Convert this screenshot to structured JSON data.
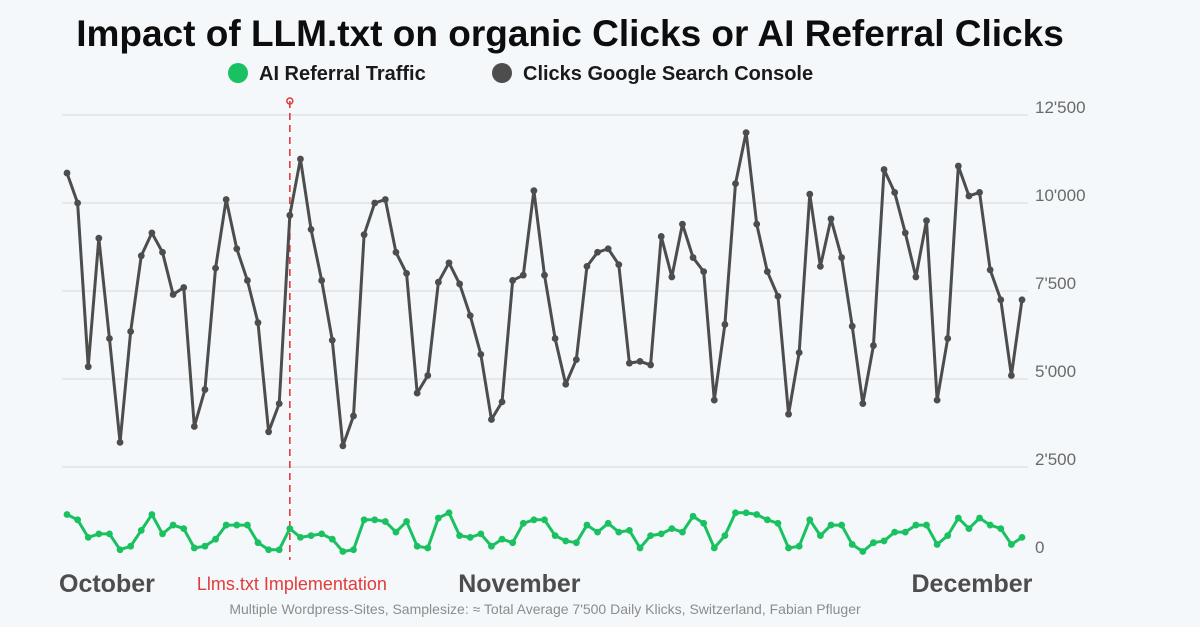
{
  "chart_data": {
    "type": "line",
    "title": "Impact of LLM.txt on organic Clicks or AI Referral Clicks",
    "ylim": [
      0,
      12500
    ],
    "yticks": [
      0,
      2500,
      5000,
      7500,
      10000,
      12500
    ],
    "ytick_labels": [
      "0",
      "2'500",
      "5'000",
      "7'500",
      "10'000",
      "12'500"
    ],
    "grid": true,
    "legend_position": "top-center",
    "x_month_labels": [
      {
        "label": "October",
        "index": 0
      },
      {
        "label": "November",
        "index": 38
      },
      {
        "label": "December",
        "index": 81
      }
    ],
    "annotation": {
      "label": "Llms.txt Implementation",
      "index": 21,
      "color": "#e23b3b"
    },
    "source": "Multiple Wordpress-Sites, Samplesize: ≈ Total Average 7'500 Daily Klicks, Switzerland, Fabian Pfluger",
    "series": [
      {
        "name": "AI Referral Traffic",
        "color": "#19c160",
        "values": [
          1150,
          1000,
          500,
          600,
          600,
          150,
          250,
          700,
          1150,
          600,
          850,
          750,
          200,
          250,
          450,
          850,
          850,
          850,
          350,
          150,
          150,
          750,
          500,
          550,
          600,
          450,
          100,
          150,
          1000,
          1000,
          950,
          650,
          950,
          250,
          200,
          1050,
          1200,
          550,
          500,
          600,
          250,
          450,
          350,
          900,
          1000,
          1000,
          550,
          400,
          350,
          850,
          650,
          900,
          650,
          700,
          200,
          550,
          600,
          750,
          650,
          1100,
          900,
          200,
          550,
          1200,
          1200,
          1150,
          1000,
          900,
          200,
          250,
          1000,
          550,
          850,
          850,
          300,
          100,
          350,
          400,
          650,
          650,
          850,
          850,
          300,
          550,
          1050,
          750,
          1050,
          850,
          750,
          300,
          500
        ]
      },
      {
        "name": "Clicks Google Search Console",
        "color": "#4d4d4d",
        "values": [
          10850,
          10000,
          5350,
          9000,
          6150,
          3200,
          6350,
          8500,
          9150,
          8600,
          7400,
          7600,
          3650,
          4700,
          8150,
          10100,
          8700,
          7800,
          6600,
          3500,
          4300,
          9650,
          11250,
          9250,
          7800,
          6100,
          3100,
          3950,
          9100,
          10000,
          10100,
          8600,
          8000,
          4600,
          5100,
          7750,
          8300,
          7700,
          6800,
          5700,
          3850,
          4350,
          7800,
          7950,
          10350,
          7950,
          6150,
          4850,
          5550,
          8200,
          8600,
          8700,
          8250,
          5450,
          5500,
          5400,
          9050,
          7900,
          9400,
          8450,
          8050,
          4400,
          6550,
          10550,
          12000,
          9400,
          8050,
          7350,
          4000,
          5750,
          10250,
          8200,
          9550,
          8450,
          6500,
          4300,
          5950,
          10950,
          10300,
          9150,
          7900,
          9500,
          4400,
          6150,
          11050,
          10200,
          10300,
          8100,
          7250,
          5100,
          7250
        ]
      }
    ]
  }
}
